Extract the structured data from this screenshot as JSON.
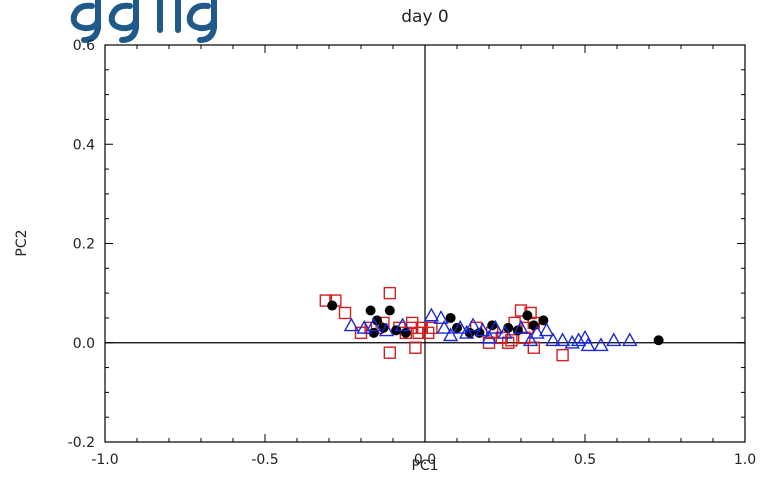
{
  "chart_data": {
    "type": "scatter",
    "title": "day 0",
    "xlabel": "PC1",
    "ylabel": "PC2",
    "xlim": [
      -1.0,
      1.0
    ],
    "ylim": [
      -0.2,
      0.6
    ],
    "xticks": [
      "-1.0",
      "-0.5",
      "0.0",
      "0.5",
      "1.0"
    ],
    "yticks": [
      "-0.2",
      "0.0",
      "0.2",
      "0.4",
      "0.6"
    ],
    "xtick_values": [
      -1.0,
      -0.5,
      0.0,
      0.5,
      1.0
    ],
    "ytick_values": [
      -0.2,
      0.0,
      0.2,
      0.4,
      0.6
    ],
    "zero_lines": true,
    "series": [
      {
        "marker": "square",
        "color": "#d42020",
        "points": [
          [
            -0.31,
            0.085
          ],
          [
            -0.28,
            0.085
          ],
          [
            -0.25,
            0.06
          ],
          [
            -0.2,
            0.02
          ],
          [
            -0.17,
            0.03
          ],
          [
            -0.15,
            0.03
          ],
          [
            -0.13,
            0.04
          ],
          [
            -0.11,
            0.1
          ],
          [
            -0.11,
            -0.02
          ],
          [
            -0.08,
            0.03
          ],
          [
            -0.06,
            0.02
          ],
          [
            -0.04,
            0.03
          ],
          [
            -0.03,
            -0.01
          ],
          [
            -0.02,
            0.02
          ],
          [
            -0.01,
            0.03
          ],
          [
            0.01,
            0.02
          ],
          [
            0.02,
            0.03
          ],
          [
            -0.04,
            0.04
          ],
          [
            0.16,
            0.03
          ],
          [
            0.2,
            0.0
          ],
          [
            0.24,
            0.01
          ],
          [
            0.26,
            0.0
          ],
          [
            0.28,
            0.04
          ],
          [
            0.3,
            0.065
          ],
          [
            0.31,
            0.01
          ],
          [
            0.32,
            0.03
          ],
          [
            0.33,
            0.06
          ],
          [
            0.34,
            0.04
          ],
          [
            0.34,
            -0.01
          ],
          [
            0.43,
            -0.025
          ],
          [
            0.21,
            0.02
          ],
          [
            0.27,
            0.005
          ]
        ]
      },
      {
        "marker": "filled-circle",
        "color": "#000000",
        "points": [
          [
            -0.29,
            0.075
          ],
          [
            -0.17,
            0.065
          ],
          [
            -0.15,
            0.045
          ],
          [
            -0.11,
            0.065
          ],
          [
            -0.13,
            0.03
          ],
          [
            -0.09,
            0.025
          ],
          [
            -0.06,
            0.02
          ],
          [
            -0.16,
            0.02
          ],
          [
            0.08,
            0.05
          ],
          [
            0.1,
            0.03
          ],
          [
            0.14,
            0.02
          ],
          [
            0.17,
            0.02
          ],
          [
            0.21,
            0.035
          ],
          [
            0.26,
            0.03
          ],
          [
            0.29,
            0.025
          ],
          [
            0.32,
            0.055
          ],
          [
            0.34,
            0.035
          ],
          [
            0.37,
            0.045
          ],
          [
            0.73,
            0.005
          ]
        ]
      },
      {
        "marker": "triangle",
        "color": "#1a2ad4",
        "points": [
          [
            -0.23,
            0.035
          ],
          [
            -0.19,
            0.03
          ],
          [
            -0.16,
            0.035
          ],
          [
            -0.12,
            0.025
          ],
          [
            -0.07,
            0.035
          ],
          [
            0.02,
            0.055
          ],
          [
            0.05,
            0.05
          ],
          [
            0.06,
            0.03
          ],
          [
            0.08,
            0.015
          ],
          [
            0.11,
            0.03
          ],
          [
            0.13,
            0.02
          ],
          [
            0.15,
            0.035
          ],
          [
            0.18,
            0.025
          ],
          [
            0.2,
            0.01
          ],
          [
            0.22,
            0.03
          ],
          [
            0.25,
            0.02
          ],
          [
            0.3,
            0.03
          ],
          [
            0.33,
            0.005
          ],
          [
            0.35,
            0.02
          ],
          [
            0.38,
            0.025
          ],
          [
            0.4,
            0.005
          ],
          [
            0.43,
            0.005
          ],
          [
            0.46,
            0.0
          ],
          [
            0.48,
            0.005
          ],
          [
            0.5,
            0.01
          ],
          [
            0.51,
            -0.005
          ],
          [
            0.55,
            -0.005
          ],
          [
            0.59,
            0.005
          ],
          [
            0.64,
            0.005
          ]
        ]
      }
    ]
  }
}
